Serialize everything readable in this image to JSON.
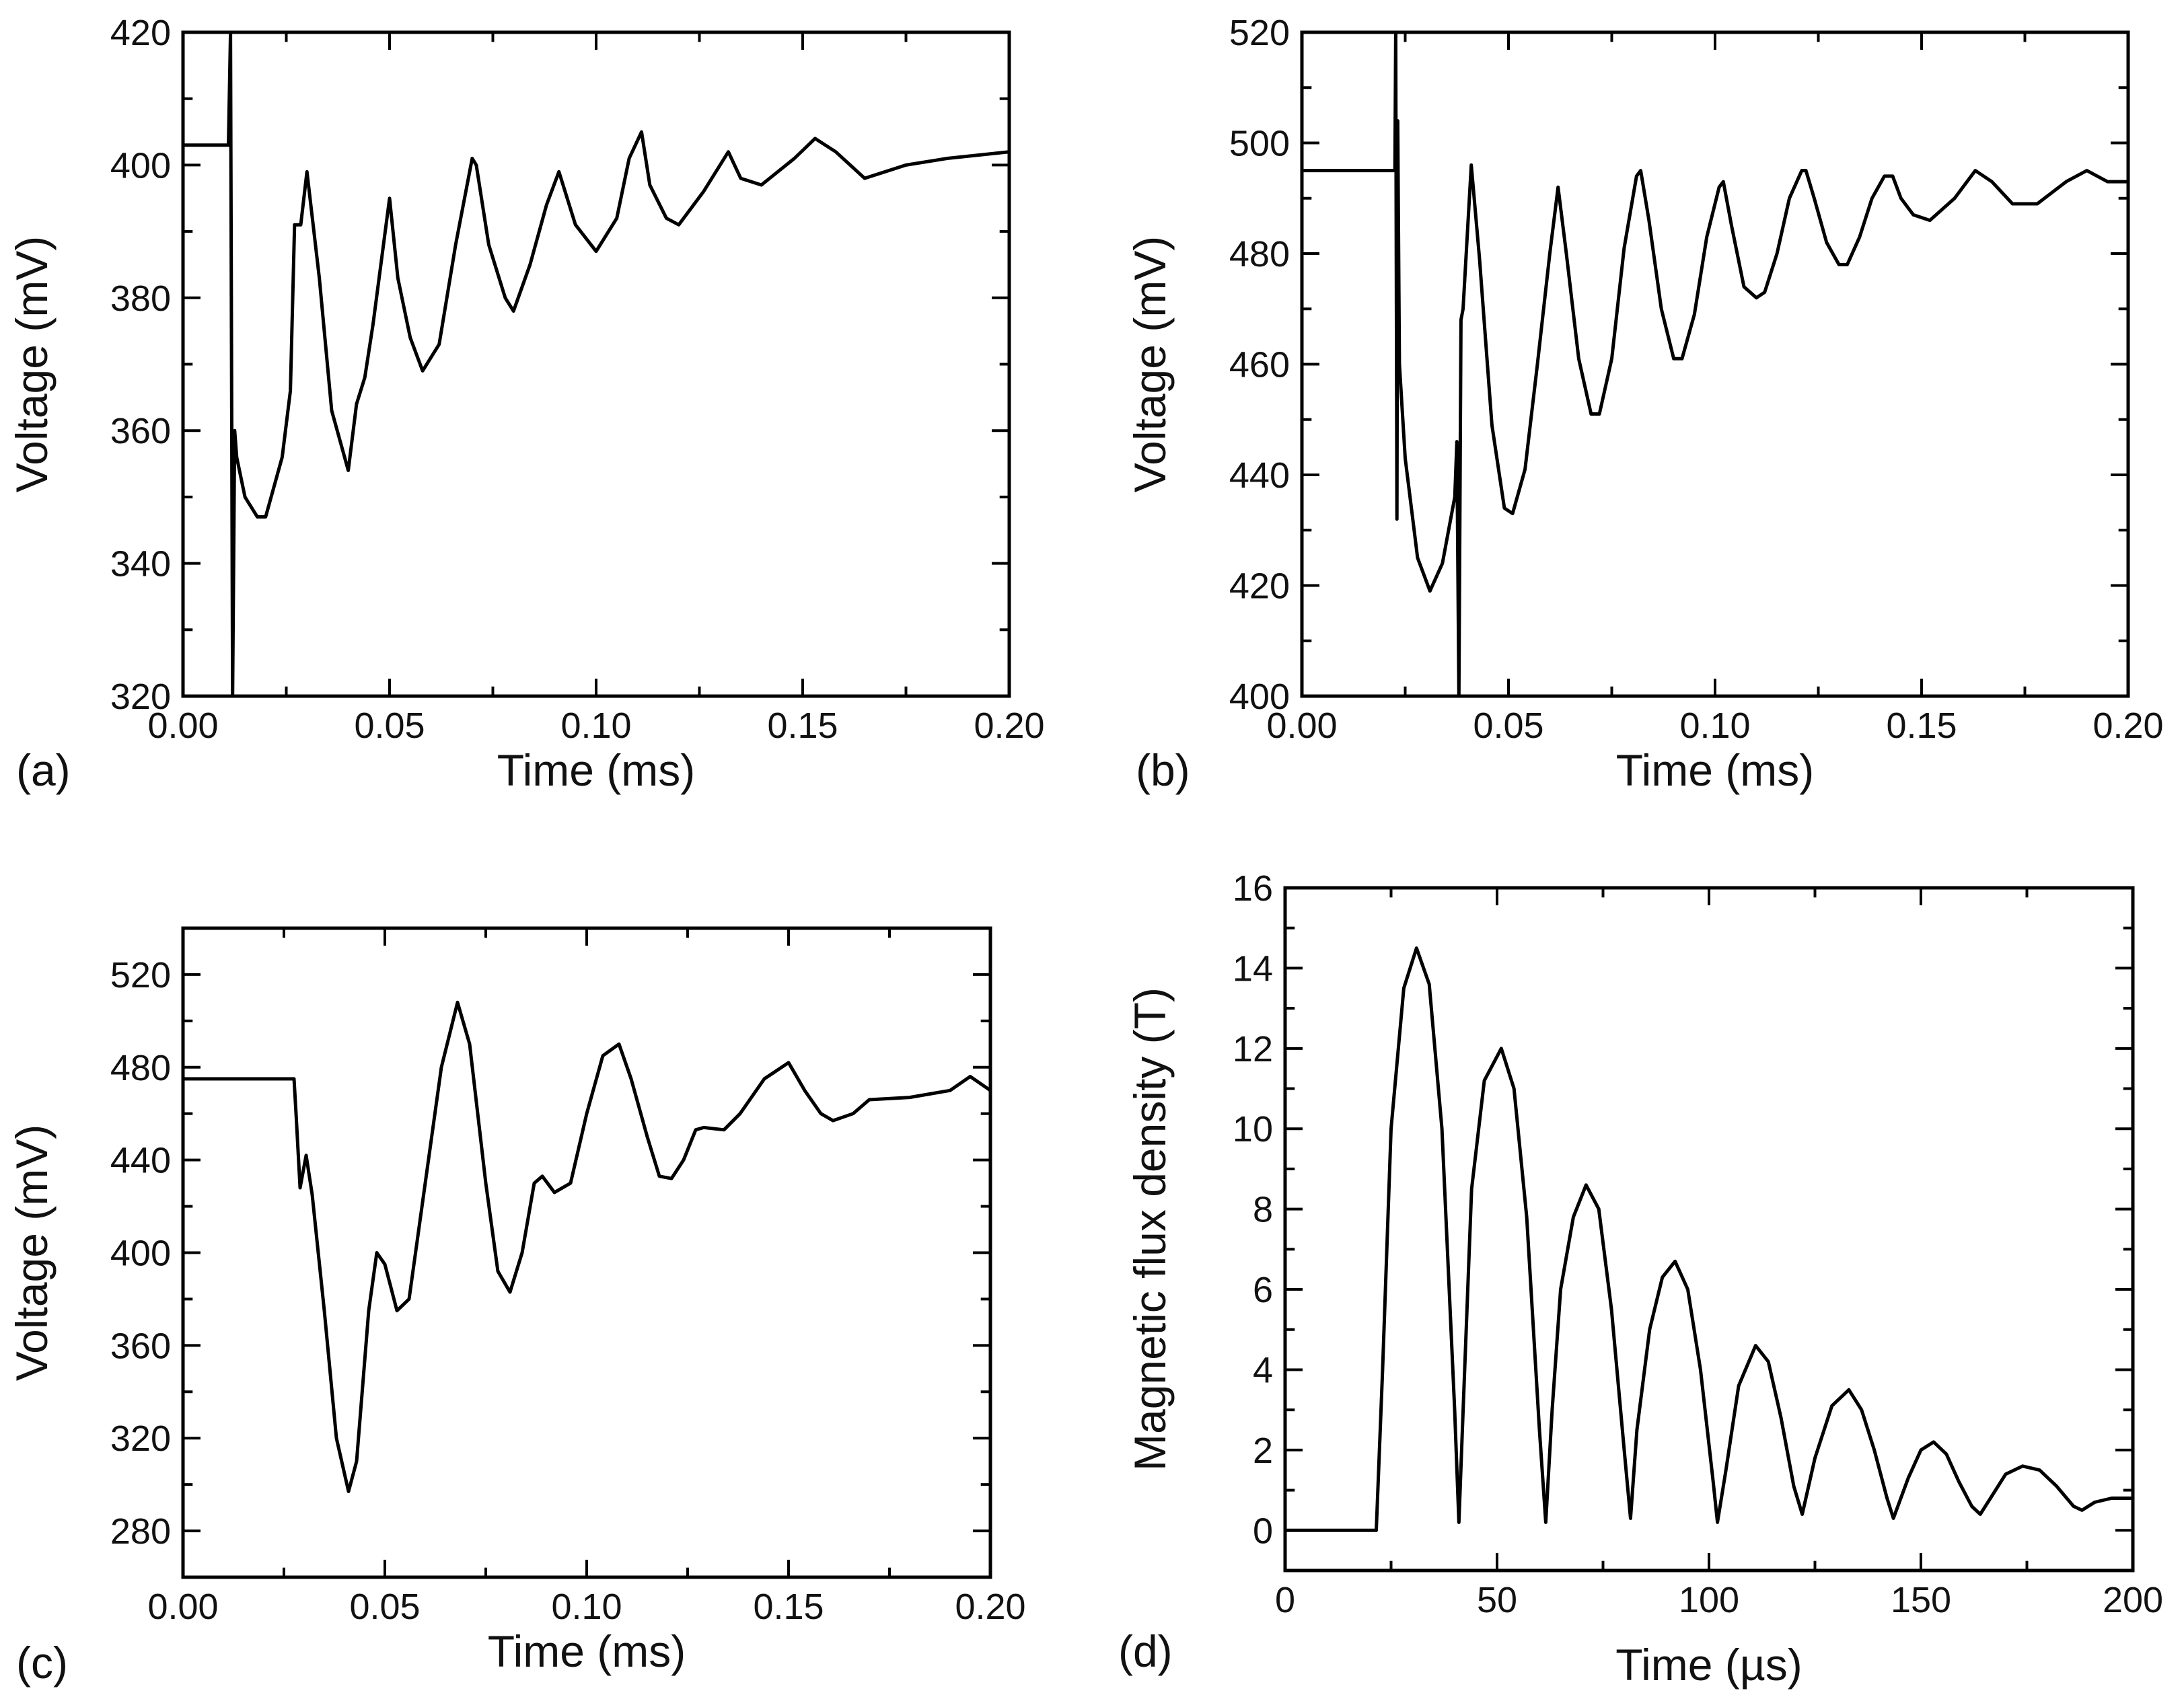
{
  "figure": {
    "panel_labels": [
      "(a)",
      "(b)",
      "(c)",
      "(d)"
    ]
  },
  "chart_data": [
    {
      "id": "a",
      "type": "line",
      "panel_label": "(a)",
      "xlabel": "Time (ms)",
      "ylabel": "Voltage (mV)",
      "xlim": [
        0.0,
        0.2
      ],
      "ylim": [
        320,
        420
      ],
      "xticks": [
        0.0,
        0.05,
        0.1,
        0.15,
        0.2
      ],
      "xtick_labels": [
        "0.00",
        "0.05",
        "0.10",
        "0.15",
        "0.20"
      ],
      "yticks": [
        320,
        340,
        360,
        380,
        400,
        420
      ],
      "ytick_labels": [
        "320",
        "340",
        "360",
        "380",
        "400",
        "420"
      ],
      "series": [
        {
          "name": "voltage",
          "x": [
            0.0,
            0.011,
            0.0115,
            0.012,
            0.0125,
            0.013,
            0.015,
            0.018,
            0.02,
            0.024,
            0.026,
            0.027,
            0.0285,
            0.03,
            0.033,
            0.036,
            0.04,
            0.042,
            0.044,
            0.046,
            0.05,
            0.052,
            0.055,
            0.058,
            0.062,
            0.066,
            0.07,
            0.071,
            0.074,
            0.078,
            0.08,
            0.084,
            0.088,
            0.091,
            0.095,
            0.1,
            0.105,
            0.108,
            0.111,
            0.113,
            0.117,
            0.12,
            0.126,
            0.132,
            0.135,
            0.14,
            0.148,
            0.153,
            0.158,
            0.165,
            0.175,
            0.185,
            0.2
          ],
          "y": [
            403,
            403,
            420,
            320,
            360,
            356,
            350,
            347,
            347,
            356,
            366,
            391,
            391,
            399,
            383,
            363,
            354,
            364,
            368,
            376,
            395,
            383,
            374,
            369,
            373,
            388,
            401,
            400,
            388,
            380,
            378,
            385,
            394,
            399,
            391,
            387,
            392,
            401,
            405,
            397,
            392,
            391,
            396,
            402,
            398,
            397,
            401,
            404,
            402,
            398,
            400,
            401,
            402
          ]
        }
      ]
    },
    {
      "id": "b",
      "type": "line",
      "panel_label": "(b)",
      "xlabel": "Time (ms)",
      "ylabel": "Voltage (mV)",
      "xlim": [
        0.0,
        0.2
      ],
      "ylim": [
        400,
        520
      ],
      "xticks": [
        0.0,
        0.05,
        0.1,
        0.15,
        0.2
      ],
      "xtick_labels": [
        "0.00",
        "0.05",
        "0.10",
        "0.15",
        "0.20"
      ],
      "yticks": [
        400,
        420,
        440,
        460,
        480,
        500,
        520
      ],
      "ytick_labels": [
        "400",
        "420",
        "440",
        "460",
        "480",
        "500",
        "520"
      ],
      "series": [
        {
          "name": "voltage",
          "x": [
            0.0,
            0.0225,
            0.0227,
            0.023,
            0.0232,
            0.0236,
            0.025,
            0.028,
            0.031,
            0.034,
            0.037,
            0.0375,
            0.038,
            0.0385,
            0.039,
            0.041,
            0.043,
            0.046,
            0.049,
            0.051,
            0.054,
            0.057,
            0.06,
            0.062,
            0.064,
            0.067,
            0.07,
            0.072,
            0.075,
            0.078,
            0.081,
            0.082,
            0.084,
            0.087,
            0.09,
            0.092,
            0.095,
            0.098,
            0.101,
            0.102,
            0.104,
            0.107,
            0.11,
            0.112,
            0.115,
            0.118,
            0.121,
            0.122,
            0.124,
            0.127,
            0.13,
            0.132,
            0.135,
            0.138,
            0.141,
            0.143,
            0.145,
            0.148,
            0.152,
            0.158,
            0.163,
            0.167,
            0.172,
            0.178,
            0.185,
            0.19,
            0.195,
            0.2
          ],
          "y": [
            495,
            495,
            520,
            432,
            504,
            460,
            443,
            425,
            419,
            424,
            436,
            446,
            400,
            468,
            470,
            496,
            479,
            449,
            434,
            433,
            441,
            460,
            480,
            492,
            480,
            461,
            451,
            451,
            461,
            481,
            494,
            495,
            486,
            470,
            461,
            461,
            469,
            483,
            492,
            493,
            485,
            474,
            472,
            473,
            480,
            490,
            495,
            495,
            490,
            482,
            478,
            478,
            483,
            490,
            494,
            494,
            490,
            487,
            486,
            490,
            495,
            493,
            489,
            489,
            493,
            495,
            493,
            493
          ]
        }
      ]
    },
    {
      "id": "c",
      "type": "line",
      "panel_label": "(c)",
      "xlabel": "Time (ms)",
      "ylabel": "Voltage (mV)",
      "xlim": [
        0.0,
        0.2
      ],
      "ylim": [
        260,
        540
      ],
      "xticks": [
        0.0,
        0.05,
        0.1,
        0.15,
        0.2
      ],
      "xtick_labels": [
        "0.00",
        "0.05",
        "0.10",
        "0.15",
        "0.20"
      ],
      "yticks": [
        280,
        320,
        360,
        400,
        440,
        480,
        520
      ],
      "ytick_labels": [
        "280",
        "320",
        "360",
        "400",
        "440",
        "480",
        "520"
      ],
      "series": [
        {
          "name": "voltage",
          "x": [
            0.0,
            0.0275,
            0.028,
            0.029,
            0.0305,
            0.032,
            0.035,
            0.038,
            0.041,
            0.043,
            0.046,
            0.048,
            0.05,
            0.053,
            0.056,
            0.06,
            0.064,
            0.068,
            0.071,
            0.075,
            0.078,
            0.081,
            0.084,
            0.087,
            0.089,
            0.092,
            0.096,
            0.1,
            0.104,
            0.108,
            0.111,
            0.115,
            0.118,
            0.121,
            0.124,
            0.127,
            0.129,
            0.134,
            0.138,
            0.144,
            0.15,
            0.154,
            0.158,
            0.161,
            0.166,
            0.17,
            0.18,
            0.19,
            0.195,
            0.2
          ],
          "y": [
            475,
            475,
            460,
            428,
            442,
            425,
            375,
            320,
            297,
            310,
            375,
            400,
            395,
            375,
            380,
            430,
            480,
            508,
            490,
            430,
            392,
            383,
            400,
            430,
            433,
            426,
            430,
            460,
            485,
            490,
            475,
            450,
            433,
            432,
            440,
            453,
            454,
            453,
            460,
            475,
            482,
            470,
            460,
            457,
            460,
            466,
            467,
            470,
            476,
            470
          ]
        }
      ]
    },
    {
      "id": "d",
      "type": "line",
      "panel_label": "(d)",
      "xlabel": "Time (µs)",
      "ylabel": "Magnetic flux density (T)",
      "xlim": [
        0,
        200
      ],
      "ylim": [
        -1,
        16
      ],
      "xticks": [
        0,
        50,
        100,
        150,
        200
      ],
      "xtick_labels": [
        "0",
        "50",
        "100",
        "150",
        "200"
      ],
      "yticks": [
        0,
        2,
        4,
        6,
        8,
        10,
        12,
        14,
        16
      ],
      "ytick_labels": [
        "0",
        "2",
        "4",
        "6",
        "8",
        "10",
        "12",
        "14",
        "16"
      ],
      "series": [
        {
          "name": "flux",
          "x": [
            0,
            21.5,
            23,
            25,
            28,
            31,
            34,
            37,
            40,
            41,
            42,
            44,
            47,
            51,
            54,
            57,
            60,
            61.5,
            63,
            65,
            68,
            71,
            74,
            77,
            80,
            81.5,
            83,
            86,
            89,
            92,
            95,
            98,
            101,
            102,
            104,
            107,
            111,
            114,
            117,
            120,
            122,
            125,
            129,
            133,
            136,
            139,
            142,
            143.5,
            147,
            150,
            153,
            156,
            159,
            162,
            164,
            167,
            170,
            174,
            178,
            182,
            186,
            188,
            191,
            195,
            200
          ],
          "y": [
            0,
            0,
            4,
            10,
            13.5,
            14.5,
            13.6,
            10,
            3,
            0.2,
            3,
            8.5,
            11.2,
            12,
            11,
            7.8,
            2.5,
            0.2,
            3,
            6,
            7.8,
            8.6,
            8,
            5.5,
            2,
            0.3,
            2.5,
            5,
            6.3,
            6.7,
            6,
            4,
            1.2,
            0.2,
            1.5,
            3.6,
            4.6,
            4.2,
            2.8,
            1.1,
            0.4,
            1.8,
            3.1,
            3.5,
            3,
            2,
            0.8,
            0.3,
            1.3,
            2,
            2.2,
            1.9,
            1.2,
            0.6,
            0.4,
            0.9,
            1.4,
            1.6,
            1.5,
            1.1,
            0.6,
            0.5,
            0.7,
            0.8,
            0.8
          ]
        }
      ]
    }
  ]
}
